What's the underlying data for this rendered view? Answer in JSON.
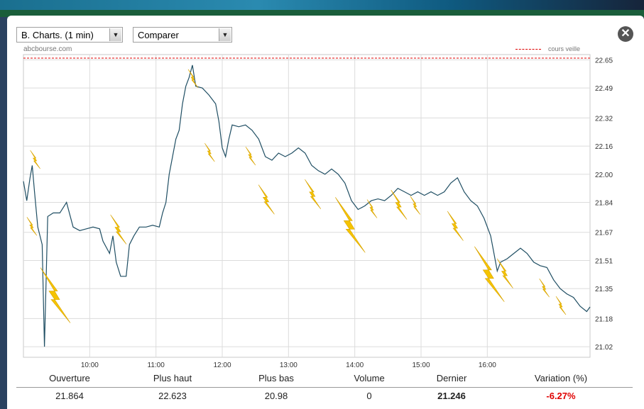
{
  "controls": {
    "chart_type": "B. Charts. (1 min)",
    "compare": "Comparer",
    "close_icon": "close-icon"
  },
  "watermark": "abcbourse.com",
  "legend": {
    "label": "cours veille",
    "color": "#dd0000"
  },
  "stats": [
    {
      "label": "Ouverture",
      "value": "21.864"
    },
    {
      "label": "Plus haut",
      "value": "22.623"
    },
    {
      "label": "Plus bas",
      "value": "20.98"
    },
    {
      "label": "Volume",
      "value": "0"
    },
    {
      "label": "Dernier",
      "value": "21.246"
    },
    {
      "label": "Variation (%)",
      "value": "-6.27%"
    }
  ],
  "chart_data": {
    "type": "line",
    "title": "",
    "xlabel": "",
    "ylabel": "",
    "x_ticks": [
      "10:00",
      "11:00",
      "12:00",
      "13:00",
      "14:00",
      "15:00",
      "16:00"
    ],
    "y_ticks": [
      22.65,
      22.49,
      22.32,
      22.16,
      22.0,
      21.84,
      21.67,
      21.51,
      21.35,
      21.18,
      21.02
    ],
    "ylim": [
      20.96,
      22.68
    ],
    "xlim": [
      "09:00",
      "17:33"
    ],
    "reference_line": {
      "label": "cours veille",
      "value": 22.66
    },
    "grid": true,
    "line_color": "#1f4e63",
    "marker_color": "#f5c400",
    "series": [
      {
        "values": [
          [
            "09:00",
            21.96
          ],
          [
            "09:03",
            21.85
          ],
          [
            "09:06",
            21.98
          ],
          [
            "09:08",
            22.05
          ],
          [
            "09:10",
            21.9
          ],
          [
            "09:13",
            21.7
          ],
          [
            "09:17",
            21.6
          ],
          [
            "09:19",
            21.02
          ],
          [
            "09:22",
            21.76
          ],
          [
            "09:27",
            21.78
          ],
          [
            "09:33",
            21.78
          ],
          [
            "09:39",
            21.84
          ],
          [
            "09:45",
            21.7
          ],
          [
            "09:51",
            21.68
          ],
          [
            "09:57",
            21.69
          ],
          [
            "10:03",
            21.7
          ],
          [
            "10:09",
            21.69
          ],
          [
            "10:12",
            21.62
          ],
          [
            "10:18",
            21.55
          ],
          [
            "10:21",
            21.65
          ],
          [
            "10:24",
            21.5
          ],
          [
            "10:28",
            21.42
          ],
          [
            "10:33",
            21.42
          ],
          [
            "10:36",
            21.6
          ],
          [
            "10:40",
            21.65
          ],
          [
            "10:45",
            21.7
          ],
          [
            "10:51",
            21.7
          ],
          [
            "10:57",
            21.71
          ],
          [
            "11:03",
            21.7
          ],
          [
            "11:06",
            21.78
          ],
          [
            "11:09",
            21.84
          ],
          [
            "11:12",
            22.0
          ],
          [
            "11:15",
            22.1
          ],
          [
            "11:18",
            22.2
          ],
          [
            "11:21",
            22.25
          ],
          [
            "11:24",
            22.4
          ],
          [
            "11:27",
            22.5
          ],
          [
            "11:30",
            22.55
          ],
          [
            "11:33",
            22.62
          ],
          [
            "11:36",
            22.5
          ],
          [
            "11:42",
            22.49
          ],
          [
            "11:48",
            22.45
          ],
          [
            "11:54",
            22.4
          ],
          [
            "11:57",
            22.3
          ],
          [
            "12:00",
            22.15
          ],
          [
            "12:03",
            22.1
          ],
          [
            "12:06",
            22.2
          ],
          [
            "12:09",
            22.28
          ],
          [
            "12:15",
            22.27
          ],
          [
            "12:21",
            22.28
          ],
          [
            "12:27",
            22.25
          ],
          [
            "12:33",
            22.2
          ],
          [
            "12:39",
            22.1
          ],
          [
            "12:45",
            22.08
          ],
          [
            "12:51",
            22.12
          ],
          [
            "12:57",
            22.1
          ],
          [
            "13:03",
            22.12
          ],
          [
            "13:09",
            22.15
          ],
          [
            "13:15",
            22.12
          ],
          [
            "13:21",
            22.05
          ],
          [
            "13:27",
            22.02
          ],
          [
            "13:33",
            22.0
          ],
          [
            "13:39",
            22.03
          ],
          [
            "13:45",
            22.0
          ],
          [
            "13:51",
            21.95
          ],
          [
            "13:57",
            21.85
          ],
          [
            "14:03",
            21.8
          ],
          [
            "14:09",
            21.82
          ],
          [
            "14:15",
            21.85
          ],
          [
            "14:21",
            21.86
          ],
          [
            "14:27",
            21.85
          ],
          [
            "14:33",
            21.88
          ],
          [
            "14:39",
            21.92
          ],
          [
            "14:45",
            21.9
          ],
          [
            "14:51",
            21.88
          ],
          [
            "14:57",
            21.9
          ],
          [
            "15:03",
            21.88
          ],
          [
            "15:09",
            21.9
          ],
          [
            "15:15",
            21.88
          ],
          [
            "15:21",
            21.9
          ],
          [
            "15:27",
            21.95
          ],
          [
            "15:33",
            21.98
          ],
          [
            "15:39",
            21.9
          ],
          [
            "15:45",
            21.85
          ],
          [
            "15:51",
            21.82
          ],
          [
            "15:57",
            21.75
          ],
          [
            "16:03",
            21.65
          ],
          [
            "16:06",
            21.55
          ],
          [
            "16:09",
            21.45
          ],
          [
            "16:12",
            21.5
          ],
          [
            "16:18",
            21.52
          ],
          [
            "16:24",
            21.55
          ],
          [
            "16:30",
            21.58
          ],
          [
            "16:36",
            21.55
          ],
          [
            "16:42",
            21.5
          ],
          [
            "16:48",
            21.48
          ],
          [
            "16:54",
            21.47
          ],
          [
            "17:00",
            21.4
          ],
          [
            "17:06",
            21.35
          ],
          [
            "17:12",
            21.32
          ],
          [
            "17:18",
            21.3
          ],
          [
            "17:24",
            21.25
          ],
          [
            "17:30",
            21.22
          ],
          [
            "17:33",
            21.246
          ]
        ]
      }
    ],
    "markers": [
      [
        "09:10",
        22.08,
        "small"
      ],
      [
        "09:07",
        21.7,
        "small"
      ],
      [
        "09:27",
        21.3,
        "large"
      ],
      [
        "10:25",
        21.68,
        "medium"
      ],
      [
        "11:33",
        22.54,
        "small"
      ],
      [
        "11:48",
        22.12,
        "small"
      ],
      [
        "12:25",
        22.1,
        "small"
      ],
      [
        "12:39",
        21.85,
        "medium"
      ],
      [
        "13:21",
        21.88,
        "medium"
      ],
      [
        "13:54",
        21.7,
        "large"
      ],
      [
        "14:15",
        21.8,
        "small"
      ],
      [
        "14:39",
        21.82,
        "medium"
      ],
      [
        "14:54",
        21.82,
        "small"
      ],
      [
        "15:30",
        21.7,
        "medium"
      ],
      [
        "16:00",
        21.42,
        "large"
      ],
      [
        "16:15",
        21.43,
        "medium"
      ],
      [
        "16:51",
        21.35,
        "small"
      ],
      [
        "17:06",
        21.25,
        "small"
      ]
    ]
  }
}
